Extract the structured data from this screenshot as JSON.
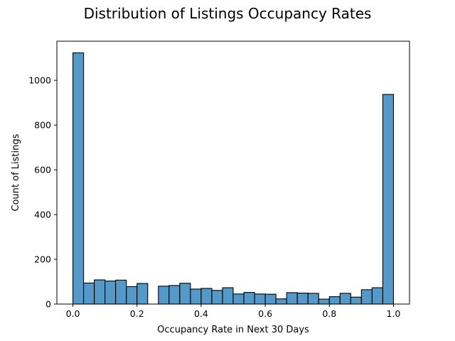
{
  "chart_data": {
    "type": "bar",
    "title": "Distribution of Listings Occupancy Rates",
    "xlabel": "Occupancy Rate in Next 30 Days",
    "ylabel": "Count of Listings",
    "xlim": [
      -0.05,
      1.05
    ],
    "ylim": [
      0,
      1175
    ],
    "bar_color": "#5499c7",
    "x_ticks": [
      0.0,
      0.2,
      0.4,
      0.6,
      0.8,
      1.0
    ],
    "x_tick_labels": [
      "0.0",
      "0.2",
      "0.4",
      "0.6",
      "0.8",
      "1.0"
    ],
    "y_ticks": [
      0,
      200,
      400,
      600,
      800,
      1000
    ],
    "y_tick_labels": [
      "0",
      "200",
      "400",
      "600",
      "800",
      "1000"
    ],
    "bin_width": 0.0333,
    "bins": [
      {
        "start": 0.0,
        "value": 1123
      },
      {
        "start": 0.0333,
        "value": 94
      },
      {
        "start": 0.0667,
        "value": 108
      },
      {
        "start": 0.1,
        "value": 103
      },
      {
        "start": 0.1333,
        "value": 107
      },
      {
        "start": 0.1667,
        "value": 78
      },
      {
        "start": 0.2,
        "value": 92
      },
      {
        "start": 0.2333,
        "value": 0
      },
      {
        "start": 0.2667,
        "value": 80
      },
      {
        "start": 0.3,
        "value": 83
      },
      {
        "start": 0.3333,
        "value": 93
      },
      {
        "start": 0.3667,
        "value": 67
      },
      {
        "start": 0.4,
        "value": 70
      },
      {
        "start": 0.4333,
        "value": 61
      },
      {
        "start": 0.4667,
        "value": 73
      },
      {
        "start": 0.5,
        "value": 45
      },
      {
        "start": 0.5333,
        "value": 52
      },
      {
        "start": 0.5667,
        "value": 45
      },
      {
        "start": 0.6,
        "value": 44
      },
      {
        "start": 0.6333,
        "value": 23
      },
      {
        "start": 0.6667,
        "value": 51
      },
      {
        "start": 0.7,
        "value": 49
      },
      {
        "start": 0.7333,
        "value": 48
      },
      {
        "start": 0.7667,
        "value": 22
      },
      {
        "start": 0.8,
        "value": 33
      },
      {
        "start": 0.8333,
        "value": 48
      },
      {
        "start": 0.8667,
        "value": 31
      },
      {
        "start": 0.9,
        "value": 64
      },
      {
        "start": 0.9333,
        "value": 73
      },
      {
        "start": 0.9667,
        "value": 937
      }
    ]
  }
}
